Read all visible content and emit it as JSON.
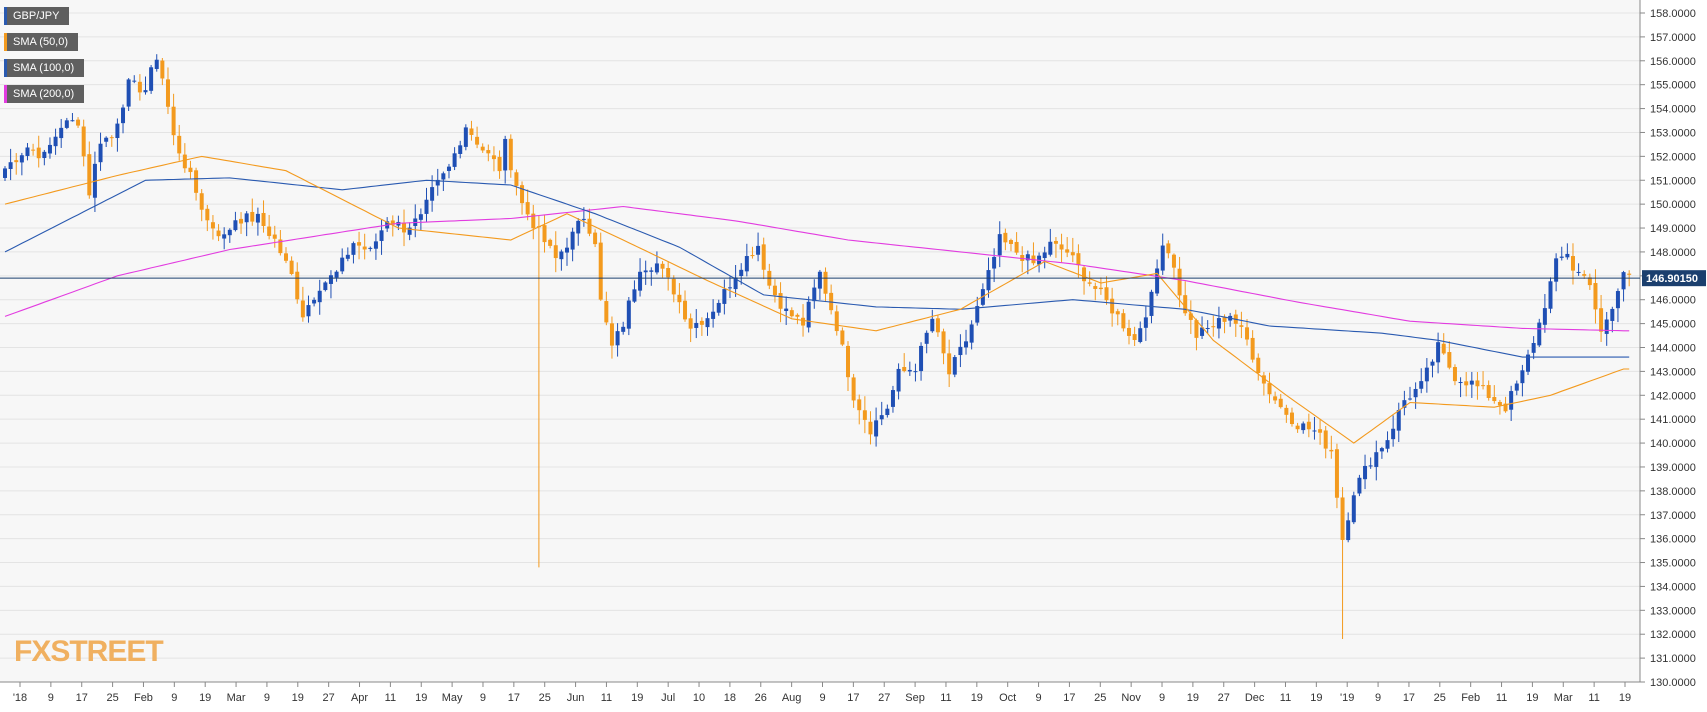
{
  "chart_data": {
    "type": "candlestick",
    "symbol": "GBP/JPY",
    "ylim": [
      130.0,
      158.0
    ],
    "y_ticks": [
      "130.0000",
      "131.0000",
      "132.0000",
      "133.0000",
      "134.0000",
      "135.0000",
      "136.0000",
      "137.0000",
      "138.0000",
      "139.0000",
      "140.0000",
      "141.0000",
      "142.0000",
      "143.0000",
      "144.0000",
      "145.0000",
      "146.0000",
      "147.0000",
      "148.0000",
      "149.0000",
      "150.0000",
      "151.0000",
      "152.0000",
      "153.0000",
      "154.0000",
      "155.0000",
      "156.0000",
      "157.0000",
      "158.0000"
    ],
    "x_ticks": [
      "'18",
      "9",
      "17",
      "25",
      "Feb",
      "9",
      "19",
      "Mar",
      "9",
      "19",
      "27",
      "Apr",
      "11",
      "19",
      "May",
      "9",
      "17",
      "25",
      "Jun",
      "11",
      "19",
      "Jul",
      "10",
      "18",
      "26",
      "Aug",
      "9",
      "17",
      "27",
      "Sep",
      "11",
      "19",
      "Oct",
      "9",
      "17",
      "25",
      "Nov",
      "9",
      "19",
      "27",
      "Dec",
      "11",
      "19",
      "'19",
      "9",
      "17",
      "25",
      "Feb",
      "11",
      "19",
      "Mar",
      "11",
      "19"
    ],
    "current_price": 146.9015,
    "current_price_label": "146.90150",
    "legend": [
      "GBP/JPY",
      "SMA (50,0)",
      "SMA (100,0)",
      "SMA (200,0)"
    ],
    "colors": {
      "up": "#1f4fb4",
      "down": "#f39a1e",
      "sma50": "#f39a1e",
      "sma100": "#2a5ab0",
      "sma200": "#e23ce0",
      "price_line": "#1b3f6e",
      "price_box": "#1b3f6e",
      "grid": "#e4e4e4",
      "plot_bg": "#f7f7f7",
      "legend_bg": "#5f5f5f",
      "watermark": "#f0b060"
    },
    "close_path": [
      [
        0,
        151.5
      ],
      [
        4,
        152.4
      ],
      [
        7,
        152.0
      ],
      [
        10,
        153.3
      ],
      [
        13,
        153.5
      ],
      [
        15,
        150.5
      ],
      [
        17,
        152.7
      ],
      [
        19,
        152.8
      ],
      [
        22,
        155.0
      ],
      [
        25,
        154.8
      ],
      [
        27,
        156.2
      ],
      [
        28,
        155.3
      ],
      [
        30,
        152.8
      ],
      [
        33,
        151.1
      ],
      [
        36,
        149.3
      ],
      [
        39,
        148.6
      ],
      [
        41,
        149.4
      ],
      [
        45,
        149.4
      ],
      [
        48,
        148.5
      ],
      [
        51,
        147.0
      ],
      [
        53,
        145.4
      ],
      [
        56,
        146.6
      ],
      [
        59,
        147.1
      ],
      [
        62,
        148.4
      ],
      [
        65,
        148.0
      ],
      [
        68,
        149.4
      ],
      [
        71,
        149.0
      ],
      [
        74,
        149.4
      ],
      [
        76,
        150.5
      ],
      [
        79,
        151.5
      ],
      [
        82,
        153.3
      ],
      [
        85,
        152.3
      ],
      [
        88,
        151.5
      ],
      [
        89,
        152.5
      ],
      [
        92,
        150.0
      ],
      [
        95,
        148.8
      ],
      [
        98,
        147.7
      ],
      [
        101,
        148.7
      ],
      [
        103,
        149.5
      ],
      [
        105,
        148.5
      ],
      [
        106,
        145.9
      ],
      [
        108,
        144.0
      ],
      [
        110,
        145.0
      ],
      [
        113,
        147.4
      ],
      [
        116,
        147.5
      ],
      [
        119,
        146.4
      ],
      [
        122,
        144.9
      ],
      [
        125,
        145.3
      ],
      [
        128,
        146.3
      ],
      [
        131,
        147.5
      ],
      [
        134,
        148.3
      ],
      [
        136,
        146.6
      ],
      [
        139,
        145.5
      ],
      [
        142,
        145.0
      ],
      [
        145,
        147.1
      ],
      [
        148,
        144.9
      ],
      [
        151,
        142.0
      ],
      [
        154,
        140.6
      ],
      [
        157,
        141.5
      ],
      [
        159,
        142.9
      ],
      [
        162,
        143.2
      ],
      [
        165,
        145.2
      ],
      [
        168,
        142.9
      ],
      [
        171,
        144.3
      ],
      [
        174,
        146.3
      ],
      [
        177,
        148.5
      ],
      [
        180,
        148.0
      ],
      [
        183,
        147.5
      ],
      [
        186,
        148.3
      ],
      [
        189,
        148.0
      ],
      [
        192,
        147.0
      ],
      [
        195,
        146.2
      ],
      [
        198,
        145.3
      ],
      [
        201,
        144.3
      ],
      [
        204,
        146.1
      ],
      [
        206,
        148.5
      ],
      [
        208,
        147.5
      ],
      [
        209,
        146.1
      ],
      [
        212,
        144.5
      ],
      [
        215,
        144.9
      ],
      [
        218,
        145.4
      ],
      [
        221,
        144.3
      ],
      [
        224,
        142.5
      ],
      [
        227,
        141.5
      ],
      [
        230,
        140.8
      ],
      [
        233,
        140.5
      ],
      [
        236,
        139.7
      ],
      [
        238,
        136.0
      ],
      [
        240,
        138.0
      ],
      [
        243,
        139.3
      ],
      [
        246,
        140.2
      ],
      [
        249,
        141.8
      ],
      [
        252,
        142.4
      ],
      [
        255,
        144.0
      ],
      [
        258,
        142.8
      ],
      [
        261,
        142.5
      ],
      [
        264,
        142.0
      ],
      [
        267,
        141.5
      ],
      [
        270,
        142.9
      ],
      [
        273,
        145.0
      ],
      [
        276,
        147.5
      ],
      [
        278,
        148.0
      ],
      [
        279,
        147.3
      ],
      [
        282,
        146.8
      ],
      [
        284,
        144.5
      ],
      [
        286,
        145.6
      ],
      [
        288,
        147.1
      ]
    ],
    "sma50": [
      [
        0,
        150.0
      ],
      [
        20,
        151.2
      ],
      [
        35,
        152.0
      ],
      [
        50,
        151.4
      ],
      [
        70,
        149.0
      ],
      [
        90,
        148.5
      ],
      [
        100,
        149.6
      ],
      [
        110,
        148.5
      ],
      [
        125,
        146.8
      ],
      [
        140,
        145.2
      ],
      [
        155,
        144.7
      ],
      [
        170,
        145.6
      ],
      [
        185,
        147.6
      ],
      [
        195,
        146.7
      ],
      [
        205,
        147.1
      ],
      [
        215,
        144.3
      ],
      [
        228,
        142.0
      ],
      [
        240,
        140.0
      ],
      [
        250,
        141.7
      ],
      [
        265,
        141.5
      ],
      [
        275,
        142.0
      ],
      [
        288,
        143.1
      ]
    ],
    "sma100": [
      [
        0,
        148.0
      ],
      [
        15,
        149.8
      ],
      [
        25,
        151.0
      ],
      [
        40,
        151.1
      ],
      [
        60,
        150.6
      ],
      [
        75,
        151.0
      ],
      [
        90,
        150.8
      ],
      [
        105,
        149.6
      ],
      [
        120,
        148.2
      ],
      [
        135,
        146.2
      ],
      [
        155,
        145.7
      ],
      [
        170,
        145.6
      ],
      [
        190,
        146.0
      ],
      [
        210,
        145.6
      ],
      [
        225,
        144.9
      ],
      [
        245,
        144.6
      ],
      [
        255,
        144.3
      ],
      [
        270,
        143.6
      ],
      [
        288,
        143.6
      ]
    ],
    "sma200": [
      [
        0,
        145.3
      ],
      [
        20,
        147.0
      ],
      [
        40,
        148.1
      ],
      [
        70,
        149.2
      ],
      [
        90,
        149.4
      ],
      [
        110,
        149.9
      ],
      [
        130,
        149.3
      ],
      [
        150,
        148.5
      ],
      [
        170,
        148.0
      ],
      [
        190,
        147.5
      ],
      [
        210,
        146.8
      ],
      [
        230,
        145.9
      ],
      [
        250,
        145.1
      ],
      [
        270,
        144.8
      ],
      [
        288,
        144.7
      ]
    ],
    "wick_extremes": [
      [
        95,
        134.8
      ],
      [
        238,
        131.8
      ]
    ]
  },
  "watermark": "FXSTREET"
}
